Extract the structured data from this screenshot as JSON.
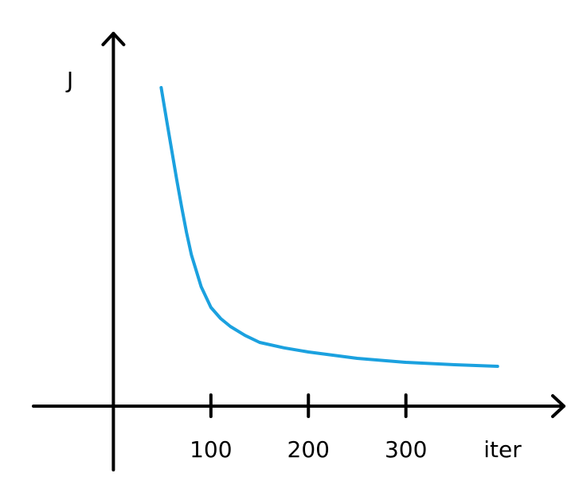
{
  "chart_data": {
    "type": "line",
    "x_label": "iter",
    "y_label": "J",
    "xlim": [
      -82,
      462
    ],
    "ylim": [
      -20,
      117
    ],
    "xticks": [
      100,
      200,
      300
    ],
    "series": [
      {
        "color": "#1ba1df",
        "x": [
          49,
          55,
          60,
          65,
          70,
          75,
          80,
          90,
          100,
          110,
          120,
          135,
          150,
          175,
          200,
          250,
          300,
          350,
          394
        ],
        "values": [
          100,
          89,
          80,
          71,
          62.5,
          54.5,
          47.5,
          37.5,
          31,
          27.5,
          25,
          22.2,
          20,
          18.3,
          17,
          15,
          13.75,
          13,
          12.5
        ]
      }
    ]
  }
}
